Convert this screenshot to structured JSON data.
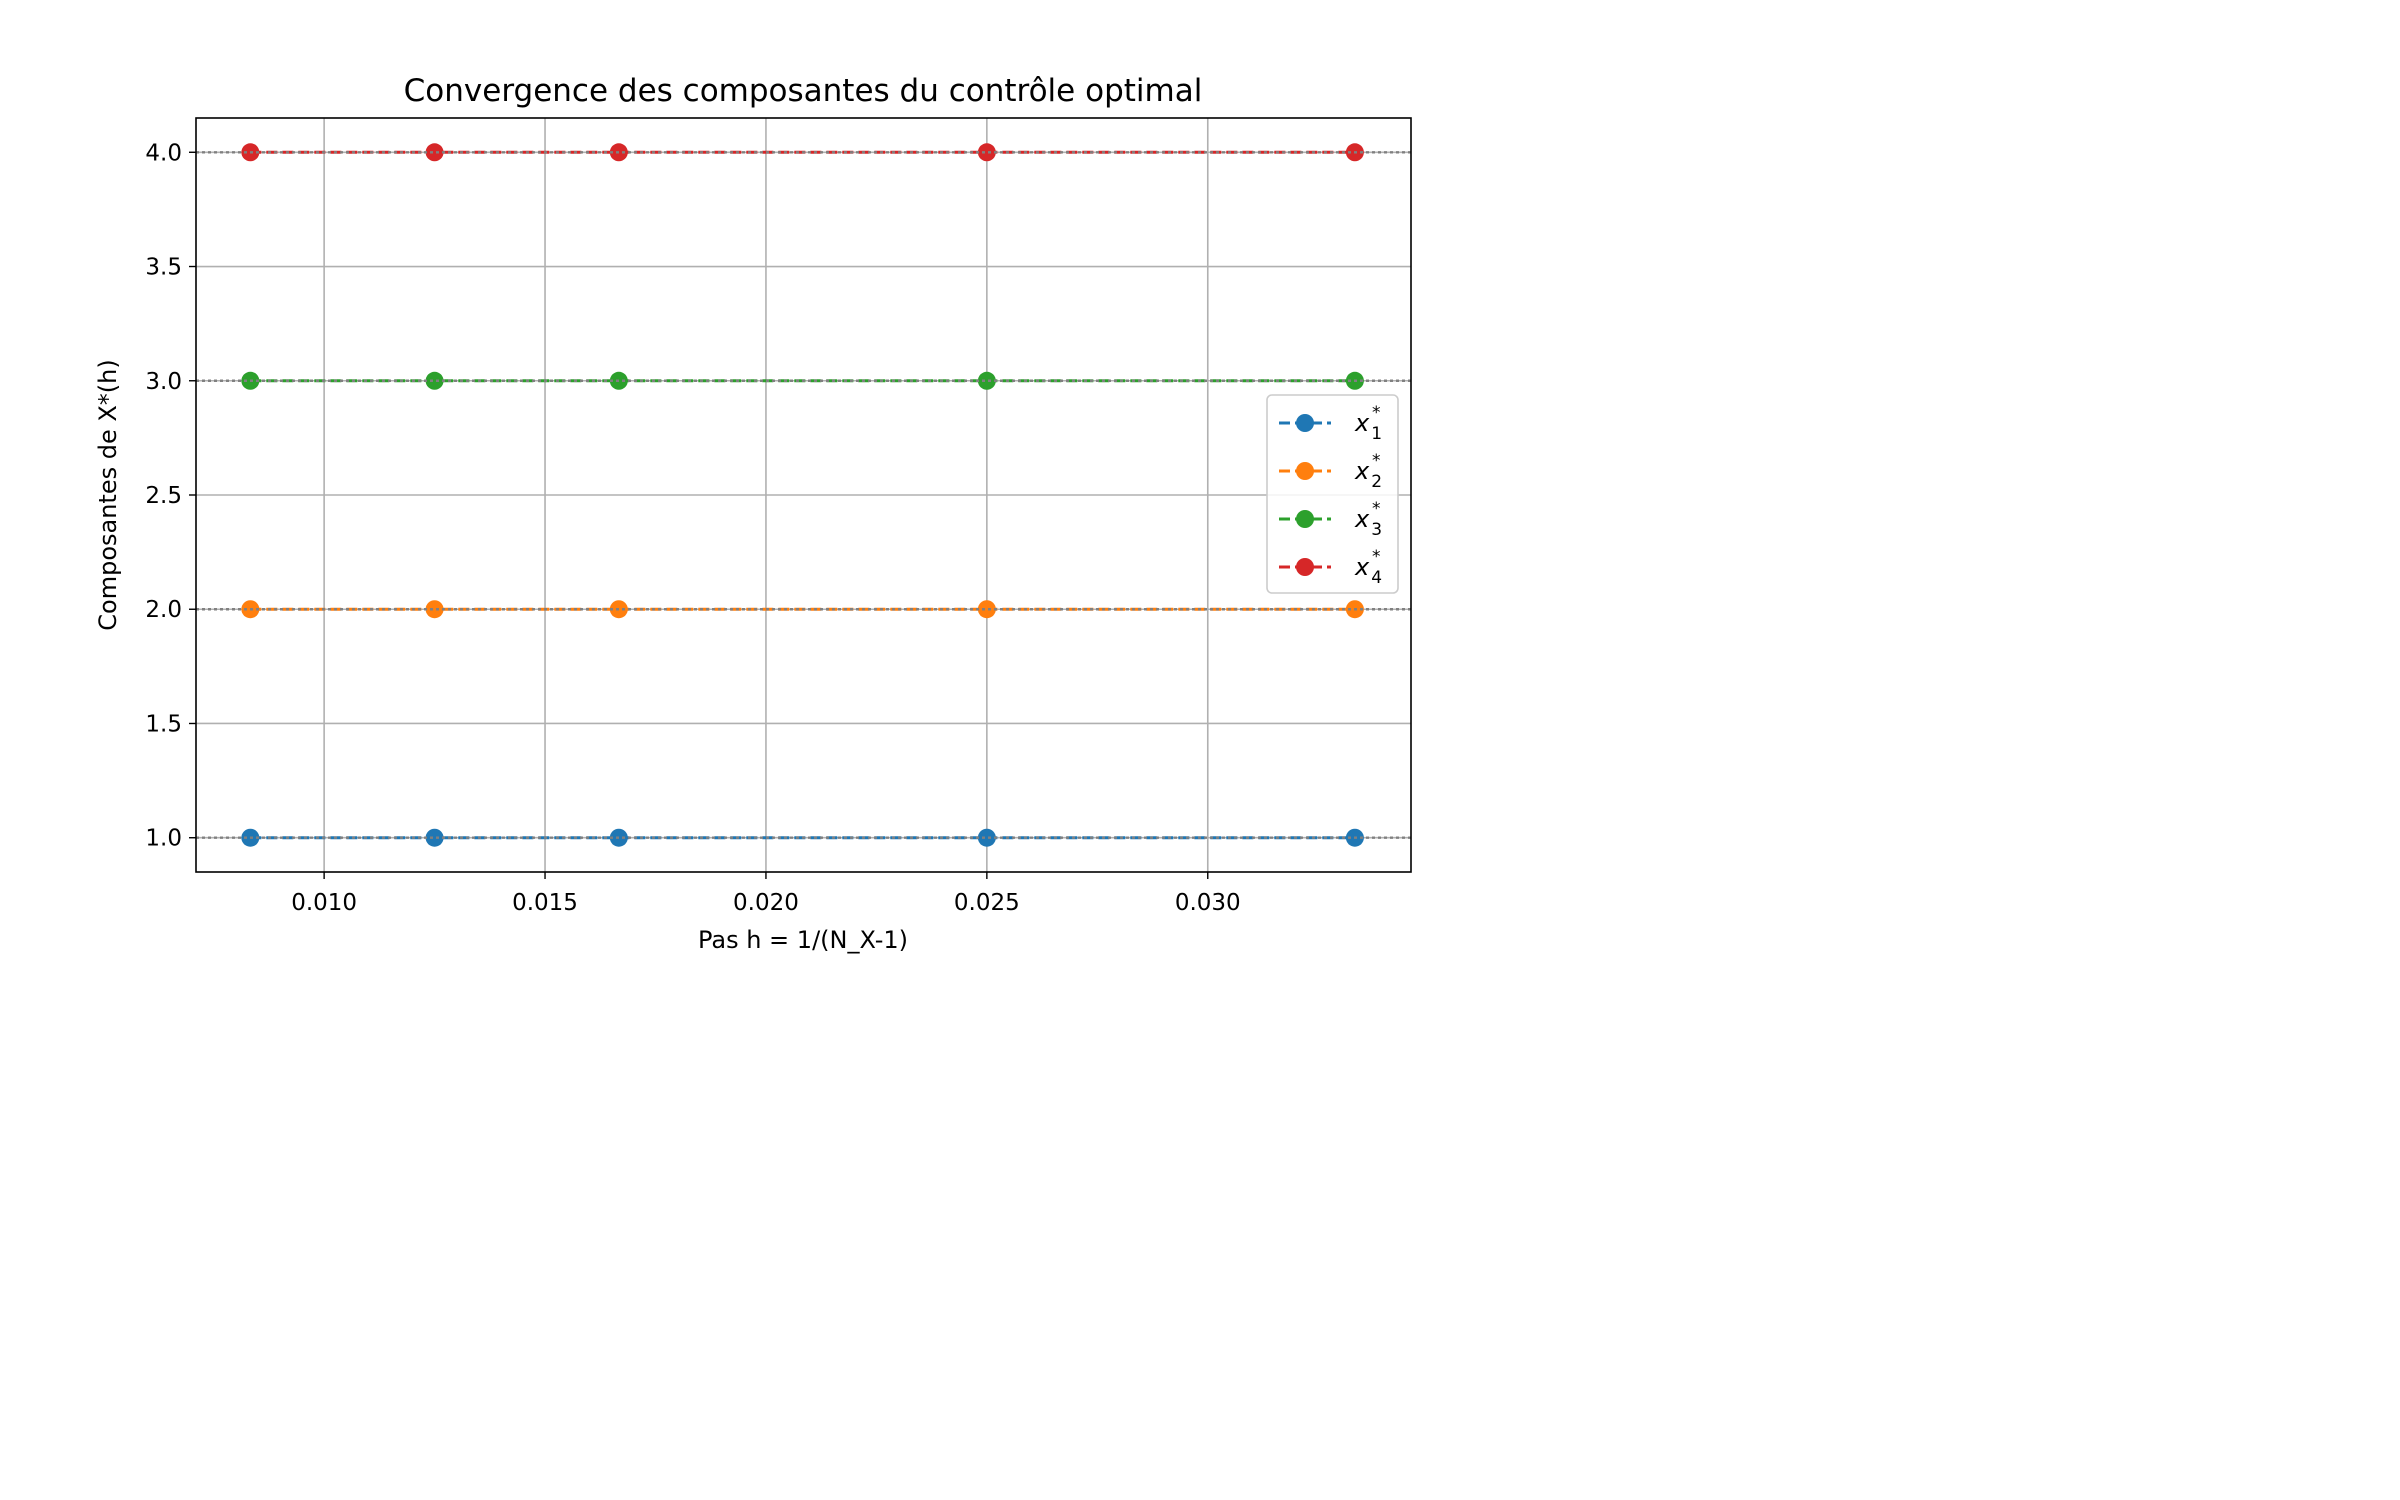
{
  "chart_data": {
    "type": "line",
    "title": "Convergence des composantes du contrôle optimal",
    "xlabel": "Pas h = 1/(N_X-1)",
    "ylabel": "Composantes de X*(h)",
    "xlim": [
      0.0071,
      0.0346
    ],
    "ylim": [
      0.85,
      4.15
    ],
    "xticks": [
      0.01,
      0.015,
      0.02,
      0.025,
      0.03
    ],
    "xtick_labels": [
      "0.010",
      "0.015",
      "0.020",
      "0.025",
      "0.030"
    ],
    "yticks": [
      1.0,
      1.5,
      2.0,
      2.5,
      3.0,
      3.5,
      4.0
    ],
    "ytick_labels": [
      "1.0",
      "1.5",
      "2.0",
      "2.5",
      "3.0",
      "3.5",
      "4.0"
    ],
    "grid": true,
    "reference_lines": [
      1.0,
      2.0,
      3.0,
      4.0
    ],
    "legend_position": "center-right",
    "x": [
      0.00833,
      0.0125,
      0.01667,
      0.025,
      0.03333
    ],
    "series": [
      {
        "name": "x",
        "sub": "1",
        "sup": "*",
        "color": "#1f77b4",
        "values": [
          1.0,
          1.0,
          1.0,
          1.0,
          1.0
        ]
      },
      {
        "name": "x",
        "sub": "2",
        "sup": "*",
        "color": "#ff7f0e",
        "values": [
          2.0,
          2.0,
          2.0,
          2.0,
          2.0
        ]
      },
      {
        "name": "x",
        "sub": "3",
        "sup": "*",
        "color": "#2ca02c",
        "values": [
          3.0,
          3.0,
          3.0,
          3.0,
          3.0
        ]
      },
      {
        "name": "x",
        "sub": "4",
        "sup": "*",
        "color": "#d62728",
        "values": [
          4.0,
          4.0,
          4.0,
          4.0,
          4.0
        ]
      }
    ]
  }
}
